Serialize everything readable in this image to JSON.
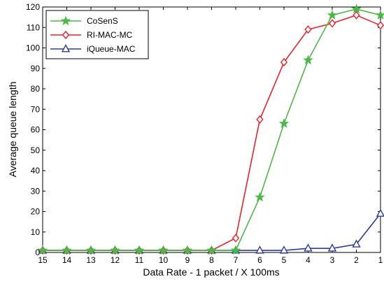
{
  "chart_data": {
    "type": "line",
    "xlabel": "Data Rate - 1 packet / X 100ms",
    "ylabel": "Average queue length",
    "x": [
      15,
      14,
      13,
      12,
      11,
      10,
      9,
      8,
      7,
      6,
      5,
      4,
      3,
      2,
      1
    ],
    "x_tick_labels": [
      "15",
      "14",
      "13",
      "12",
      "11",
      "10",
      "9",
      "8",
      "7",
      "6",
      "5",
      "4",
      "3",
      "2",
      "1"
    ],
    "ylim": [
      0,
      120
    ],
    "y_ticks": [
      0,
      10,
      20,
      30,
      40,
      50,
      60,
      70,
      80,
      90,
      100,
      110,
      120
    ],
    "grid": false,
    "legend_position": "top-left",
    "series": [
      {
        "name": "CoSenS",
        "color": "#4db848",
        "marker": "star",
        "values": [
          1,
          1,
          1,
          1,
          1,
          1,
          1,
          1,
          1,
          27,
          63,
          94,
          116,
          119,
          116
        ]
      },
      {
        "name": "RI-MAC-MC",
        "color": "#e8232b",
        "marker": "diamond",
        "values": [
          1,
          1,
          1,
          1,
          1,
          1,
          1,
          1,
          7,
          65,
          93,
          109,
          112,
          116,
          111
        ]
      },
      {
        "name": "iQueue-MAC",
        "color": "#2e3c99",
        "marker": "triangle",
        "values": [
          1,
          1,
          1,
          1,
          1,
          1,
          1,
          1,
          1,
          1,
          1,
          2,
          2,
          4,
          19
        ]
      }
    ]
  }
}
